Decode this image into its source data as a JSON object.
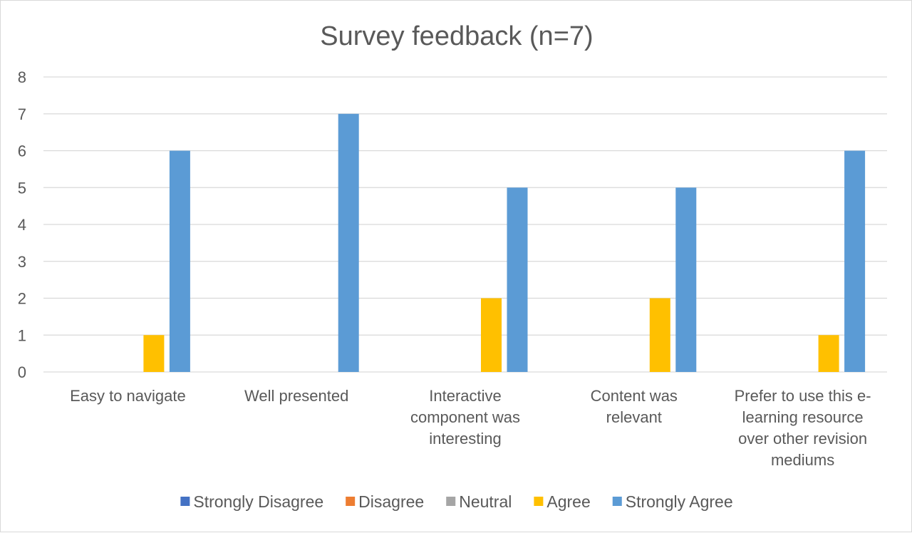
{
  "chart_data": {
    "type": "bar",
    "title": "Survey feedback (n=7)",
    "categories": [
      [
        "Easy to navigate"
      ],
      [
        "Well presented"
      ],
      [
        "Interactive",
        "component was",
        "interesting"
      ],
      [
        "Content was",
        "relevant"
      ],
      [
        "Prefer to use this e-",
        "learning resource",
        "over other revision",
        "mediums"
      ]
    ],
    "series": [
      {
        "name": "Strongly Disagree",
        "color": "#4472c4",
        "values": [
          0,
          0,
          0,
          0,
          0
        ]
      },
      {
        "name": "Disagree",
        "color": "#ed7d31",
        "values": [
          0,
          0,
          0,
          0,
          0
        ]
      },
      {
        "name": "Neutral",
        "color": "#a5a5a5",
        "values": [
          0,
          0,
          0,
          0,
          0
        ]
      },
      {
        "name": "Agree",
        "color": "#ffc000",
        "values": [
          1,
          0,
          2,
          2,
          1
        ]
      },
      {
        "name": "Strongly Agree",
        "color": "#5b9bd5",
        "values": [
          6,
          7,
          5,
          5,
          6
        ]
      }
    ],
    "ylim": [
      0,
      8
    ],
    "yticks": [
      0,
      1,
      2,
      3,
      4,
      5,
      6,
      7,
      8
    ],
    "grid": true,
    "legend_position": "bottom"
  }
}
